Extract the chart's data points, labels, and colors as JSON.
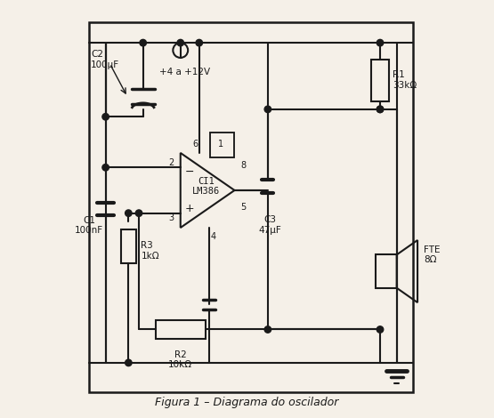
{
  "title": "Figura 1 – Diagrama do oscilador",
  "bg_color": "#f5f0e8",
  "line_color": "#1a1a1a",
  "lw": 1.5,
  "border": [
    0.12,
    0.06,
    0.88,
    0.94
  ],
  "components": {
    "C2_label": "C2\n100μF",
    "C1_label": "C1\n100nF",
    "R1_label": "R1\n33kΩ",
    "R2_label": "R2\n10kΩ",
    "R3_label": "R3\n1kΩ",
    "C3_label": "C3\n47μF",
    "IC_label": "CI1\nLM386",
    "speaker_label": "FTE\n8Ω",
    "vcc_label": "+4 a +12V"
  }
}
